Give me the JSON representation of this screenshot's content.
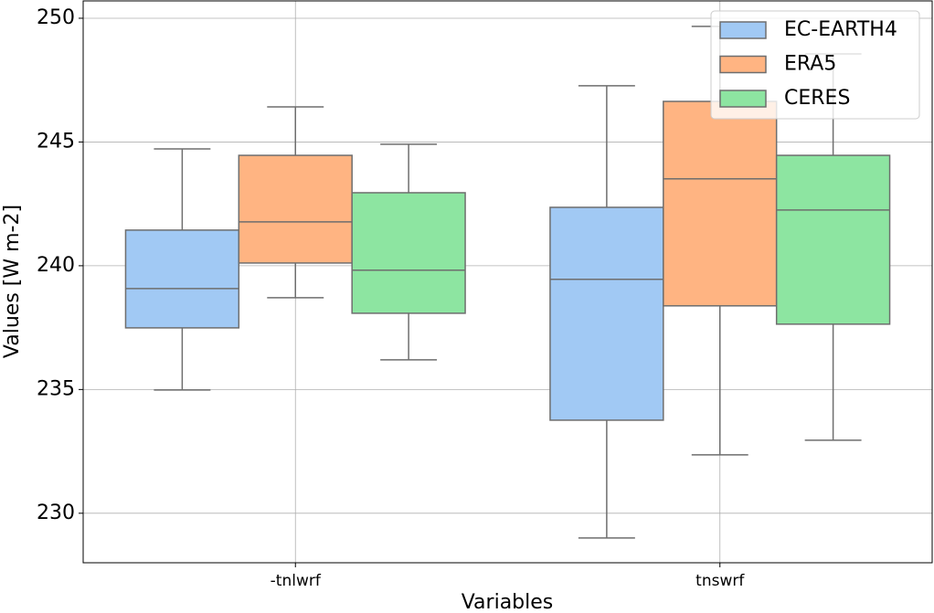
{
  "chart_data": {
    "type": "box",
    "x_label": "Variables",
    "y_label": "Values [W m-2]",
    "categories": [
      "-tnlwrf",
      "tnswrf"
    ],
    "series": [
      {
        "name": "EC-EARTH4",
        "color": "#a1c9f4",
        "boxes": [
          {
            "whislo": 234.98,
            "q1": 237.49,
            "median": 239.08,
            "q3": 241.44,
            "whishi": 244.72
          },
          {
            "whislo": 229.0,
            "q1": 233.76,
            "median": 239.45,
            "q3": 242.36,
            "whishi": 247.27
          }
        ]
      },
      {
        "name": "ERA5",
        "color": "#ffb482",
        "boxes": [
          {
            "whislo": 238.71,
            "q1": 240.11,
            "median": 241.77,
            "q3": 244.46,
            "whishi": 246.42
          },
          {
            "whislo": 232.36,
            "q1": 238.38,
            "median": 243.51,
            "q3": 246.64,
            "whishi": 249.67
          }
        ]
      },
      {
        "name": "CERES",
        "color": "#8de5a1",
        "boxes": [
          {
            "whislo": 236.2,
            "q1": 238.08,
            "median": 239.82,
            "q3": 242.95,
            "whishi": 244.91
          },
          {
            "whislo": 232.95,
            "q1": 237.64,
            "median": 242.25,
            "q3": 244.46,
            "whishi": 248.56
          }
        ]
      }
    ],
    "ylim": [
      228.0,
      250.7
    ],
    "yticks": [
      230,
      235,
      240,
      245,
      250
    ],
    "grid": true,
    "legend": "upper right",
    "line_color": "#6e6e6e"
  }
}
